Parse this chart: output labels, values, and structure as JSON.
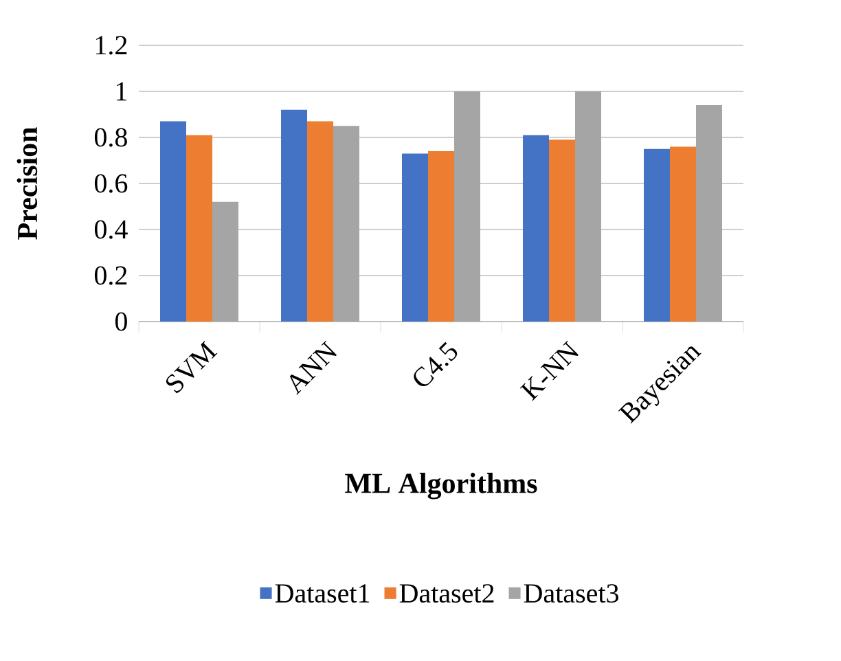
{
  "chart_data": {
    "type": "bar",
    "xlabel": "ML Algorithms",
    "ylabel": "Precision",
    "categories": [
      "SVM",
      "ANN",
      "C4.5",
      "K-NN",
      "Bayesian"
    ],
    "series": [
      {
        "name": "Dataset1",
        "color": "#4472c4",
        "values": [
          0.87,
          0.92,
          0.73,
          0.81,
          0.75
        ]
      },
      {
        "name": "Dataset2",
        "color": "#ed7d31",
        "values": [
          0.81,
          0.87,
          0.74,
          0.79,
          0.76
        ]
      },
      {
        "name": "Dataset3",
        "color": "#a5a5a5",
        "values": [
          0.52,
          0.85,
          1.0,
          1.0,
          0.94
        ]
      }
    ],
    "ylim": [
      0,
      1.2
    ],
    "yticks": [
      0,
      0.2,
      0.4,
      0.6,
      0.8,
      1,
      1.2
    ],
    "grid": "y",
    "legend": "bottom"
  }
}
